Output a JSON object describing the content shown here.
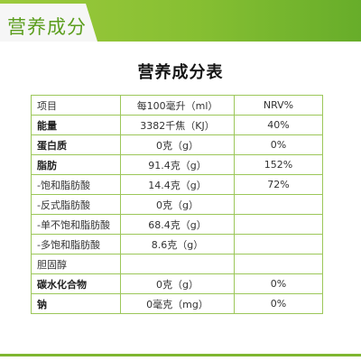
{
  "header": {
    "label": "营养成分"
  },
  "title": "营养成分表",
  "table": {
    "columns": [
      "项目",
      "每100毫升（ml）",
      "NRV%"
    ],
    "rows": [
      {
        "name": "能量",
        "per100": "3382千焦（KJ）",
        "nrv": "40%"
      },
      {
        "name": "蛋白质",
        "per100": "0克（g）",
        "nrv": "0%"
      },
      {
        "name": "脂肪",
        "per100": "91.4克（g）",
        "nrv": "152%"
      },
      {
        "name": "-饱和脂肪酸",
        "per100": "14.4克（g）",
        "nrv": "72%"
      },
      {
        "name": "-反式脂肪酸",
        "per100": "0克（g）",
        "nrv": ""
      },
      {
        "name": "-单不饱和脂肪酸",
        "per100": "68.4克（g）",
        "nrv": ""
      },
      {
        "name": "-多饱和脂肪酸",
        "per100": "8.6克（g）",
        "nrv": ""
      },
      {
        "name": "胆固醇",
        "per100": "",
        "nrv": ""
      },
      {
        "name": "碳水化合物",
        "per100": "0克（g）",
        "nrv": "0%"
      },
      {
        "name": "钠",
        "per100": "0毫克（mg）",
        "nrv": "0%"
      }
    ]
  },
  "colors": {
    "accent_green": "#86bf32",
    "border_green": "#9cc75a",
    "header_text": "#5c9e1e"
  }
}
